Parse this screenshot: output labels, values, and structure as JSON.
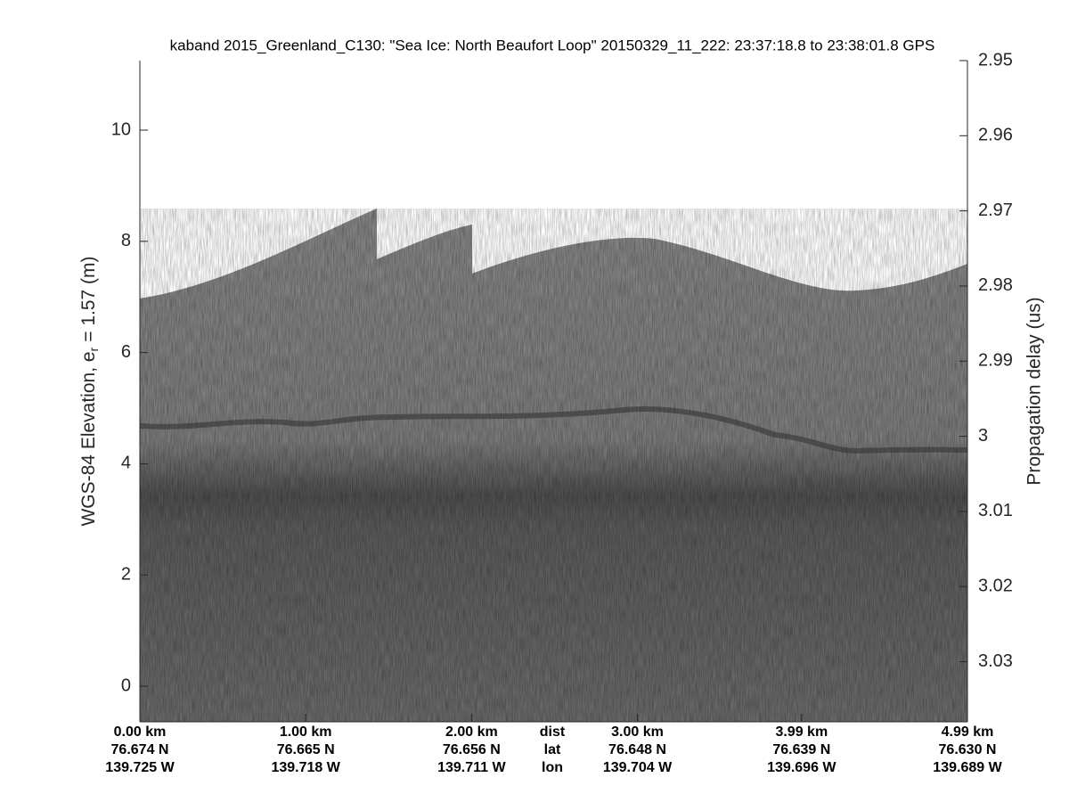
{
  "chart_data": {
    "type": "image",
    "title": "kaband 2015_Greenland_C130: \"Sea Ice: North Beaufort Loop\"  20150329_11_222: 23:37:18.8 to 23:38:01.8 GPS",
    "ylabel": {
      "text": "WGS-84 Elevation, e",
      "subscript": "r",
      "suffix": "= 1.57 (m)"
    },
    "y2label": "Propagation delay (us)",
    "ylim": [
      -0.64,
      11.25
    ],
    "yticks": [
      0,
      2,
      4,
      6,
      8,
      10
    ],
    "y2lim": [
      3.038,
      2.95
    ],
    "y2ticks": [
      2.95,
      2.96,
      2.97,
      2.98,
      2.99,
      3,
      3.01,
      3.02,
      3.03
    ],
    "xlim": [
      0,
      4.99
    ],
    "xticks": [
      {
        "value": 0,
        "label": "0.00 km"
      },
      {
        "value": 1,
        "label": "1.00 km"
      },
      {
        "value": 2,
        "label": "2.00 km"
      },
      {
        "value": 3,
        "label": "3.00 km"
      },
      {
        "value": 3.99,
        "label": "3.99 km"
      },
      {
        "value": 4.99,
        "label": "4.99 km"
      }
    ],
    "xtick_lat": [
      "76.674 N",
      "76.665 N",
      "76.656 N",
      "76.648 N",
      "76.639 N",
      "76.630 N"
    ],
    "xtick_lon": [
      "139.725 W",
      "139.718 W",
      "139.711 W",
      "139.704 W",
      "139.696 W",
      "139.689 W"
    ],
    "x_row_labels": [
      "dist",
      "lat",
      "lon"
    ]
  }
}
